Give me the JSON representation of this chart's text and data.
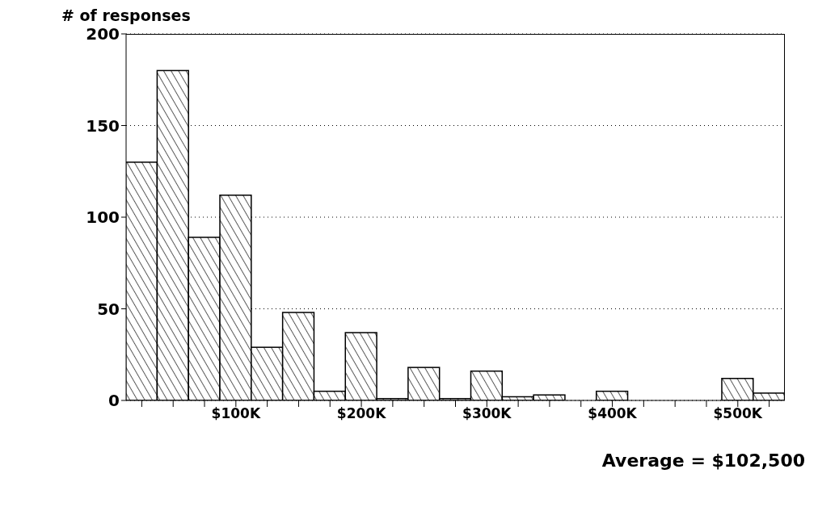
{
  "chart_data": {
    "type": "histogram",
    "ylabel": "# of responses",
    "bins": [
      12500,
      37500,
      62500,
      87500,
      112500,
      137500,
      162500,
      187500,
      212500,
      237500,
      262500,
      287500,
      312500,
      337500,
      362500,
      387500,
      412500,
      437500,
      462500,
      487500,
      512500,
      537500
    ],
    "values": [
      130,
      180,
      89,
      112,
      29,
      48,
      5,
      37,
      1,
      18,
      1,
      16,
      2,
      3,
      0,
      5,
      0,
      0,
      0,
      12,
      4
    ],
    "color": "#000000",
    "xlim": [
      12500,
      537500
    ],
    "xticks": [
      {
        "value": 25000,
        "label": null
      },
      {
        "value": 50000,
        "label": null
      },
      {
        "value": 75000,
        "label": null
      },
      {
        "value": 100000,
        "label": "$100K"
      },
      {
        "value": 125000,
        "label": null
      },
      {
        "value": 150000,
        "label": null
      },
      {
        "value": 175000,
        "label": null
      },
      {
        "value": 200000,
        "label": "$200K"
      },
      {
        "value": 225000,
        "label": null
      },
      {
        "value": 250000,
        "label": null
      },
      {
        "value": 275000,
        "label": null
      },
      {
        "value": 300000,
        "label": "$300K"
      },
      {
        "value": 325000,
        "label": null
      },
      {
        "value": 350000,
        "label": null
      },
      {
        "value": 375000,
        "label": null
      },
      {
        "value": 400000,
        "label": "$400K"
      },
      {
        "value": 425000,
        "label": null
      },
      {
        "value": 450000,
        "label": null
      },
      {
        "value": 475000,
        "label": null
      },
      {
        "value": 500000,
        "label": "$500K"
      },
      {
        "value": 525000,
        "label": null
      }
    ],
    "ylim": [
      0,
      200
    ],
    "yticks": [
      0,
      50,
      100,
      150,
      200
    ],
    "grid": "y",
    "annotations": [
      "Average = $102,500"
    ]
  }
}
